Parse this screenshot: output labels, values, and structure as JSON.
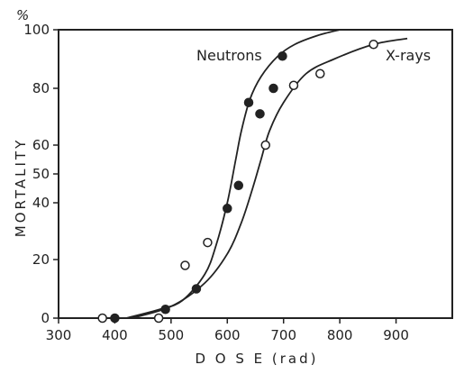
{
  "chart_data": {
    "type": "scatter",
    "title": "",
    "xlabel": "D O S E  (rad)",
    "ylabel": "MORTALITY",
    "ylabel_unit": "%",
    "xlim": [
      300,
      1000
    ],
    "x_ticks": [
      300,
      400,
      500,
      600,
      700,
      800,
      900
    ],
    "y_ticks": [
      0,
      20,
      40,
      50,
      60,
      80,
      100
    ],
    "y_scale": "probit-like (compressed near 50, expanded near 0 and 100)",
    "grid": false,
    "legend": "labels placed directly next to curves",
    "series": [
      {
        "name": "Neutrons",
        "marker": "filled-circle",
        "color": "#222222",
        "points": [
          {
            "x": 400,
            "y": 0
          },
          {
            "x": 490,
            "y": 3
          },
          {
            "x": 545,
            "y": 10
          },
          {
            "x": 600,
            "y": 38
          },
          {
            "x": 620,
            "y": 46
          },
          {
            "x": 638,
            "y": 75
          },
          {
            "x": 658,
            "y": 71
          },
          {
            "x": 682,
            "y": 80
          },
          {
            "x": 698,
            "y": 91
          }
        ],
        "fit_curve": [
          {
            "x": 420,
            "y": 0
          },
          {
            "x": 480,
            "y": 3
          },
          {
            "x": 520,
            "y": 6
          },
          {
            "x": 560,
            "y": 15
          },
          {
            "x": 580,
            "y": 25
          },
          {
            "x": 600,
            "y": 40
          },
          {
            "x": 615,
            "y": 55
          },
          {
            "x": 625,
            "y": 65
          },
          {
            "x": 640,
            "y": 76
          },
          {
            "x": 660,
            "y": 84
          },
          {
            "x": 690,
            "y": 91
          },
          {
            "x": 720,
            "y": 95
          },
          {
            "x": 760,
            "y": 98
          },
          {
            "x": 800,
            "y": 100
          }
        ]
      },
      {
        "name": "X-rays",
        "marker": "open-circle",
        "color": "#222222",
        "points": [
          {
            "x": 378,
            "y": 0
          },
          {
            "x": 478,
            "y": 0
          },
          {
            "x": 525,
            "y": 18
          },
          {
            "x": 565,
            "y": 26
          },
          {
            "x": 668,
            "y": 60
          },
          {
            "x": 718,
            "y": 81
          },
          {
            "x": 765,
            "y": 85
          },
          {
            "x": 860,
            "y": 95
          }
        ],
        "fit_curve": [
          {
            "x": 430,
            "y": 0
          },
          {
            "x": 500,
            "y": 4
          },
          {
            "x": 560,
            "y": 12
          },
          {
            "x": 600,
            "y": 22
          },
          {
            "x": 625,
            "y": 33
          },
          {
            "x": 645,
            "y": 45
          },
          {
            "x": 660,
            "y": 55
          },
          {
            "x": 675,
            "y": 65
          },
          {
            "x": 700,
            "y": 75
          },
          {
            "x": 740,
            "y": 85
          },
          {
            "x": 790,
            "y": 90
          },
          {
            "x": 860,
            "y": 95
          },
          {
            "x": 920,
            "y": 97
          }
        ]
      }
    ]
  }
}
